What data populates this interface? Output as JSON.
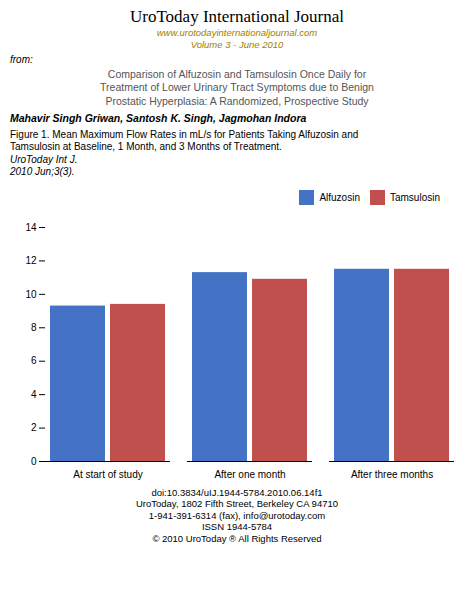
{
  "chart_data": {
    "type": "bar",
    "title": "UroToday International Journal",
    "subtitle": [
      "www.urotodayinternationaljournal.com",
      "Volume 3 - June 2010"
    ],
    "annotations": [
      "from:",
      "Comparison of Alfuzosin and Tamsulosin Once Daily for\nTreatment of Lower Urinary Tract Symptoms due to Benign\nProstatic Hyperplasia: A Randomized, Prospective Study",
      "Mahavir Singh Griwan, Santosh K. Singh, Jagmohan Indora",
      "Figure 1.  Mean Maximum Flow Rates in mL/s for Patients Taking Alfuzosin and\nTamsulosin at Baseline, 1 Month, and 3 Months of Treatment.",
      "UroToday Int J.\n2010 Jun;3(3).",
      "doi:10.3834/uIJ.1944-5784.2010.06.14f1",
      "UroToday, 1802 Fifth Street, Berkeley CA 94710",
      "1-941-391-6314 (fax), info@urotoday.com",
      "ISSN 1944-5784",
      "© 2010 UroToday ® All Rights Reserved"
    ],
    "categories": [
      "At start of study",
      "After one month",
      "After three months"
    ],
    "series": [
      {
        "name": "Alfuzosin",
        "color": "#4472C4",
        "values": [
          9.3,
          11.3,
          11.5
        ]
      },
      {
        "name": "Tamsulosin",
        "color": "#C0504D",
        "values": [
          9.4,
          10.9,
          11.5
        ]
      }
    ],
    "ylim": [
      0,
      14
    ],
    "yticks": [
      0,
      2,
      4,
      6,
      8,
      10,
      12,
      14
    ],
    "legend": "upper right",
    "grid": false
  }
}
